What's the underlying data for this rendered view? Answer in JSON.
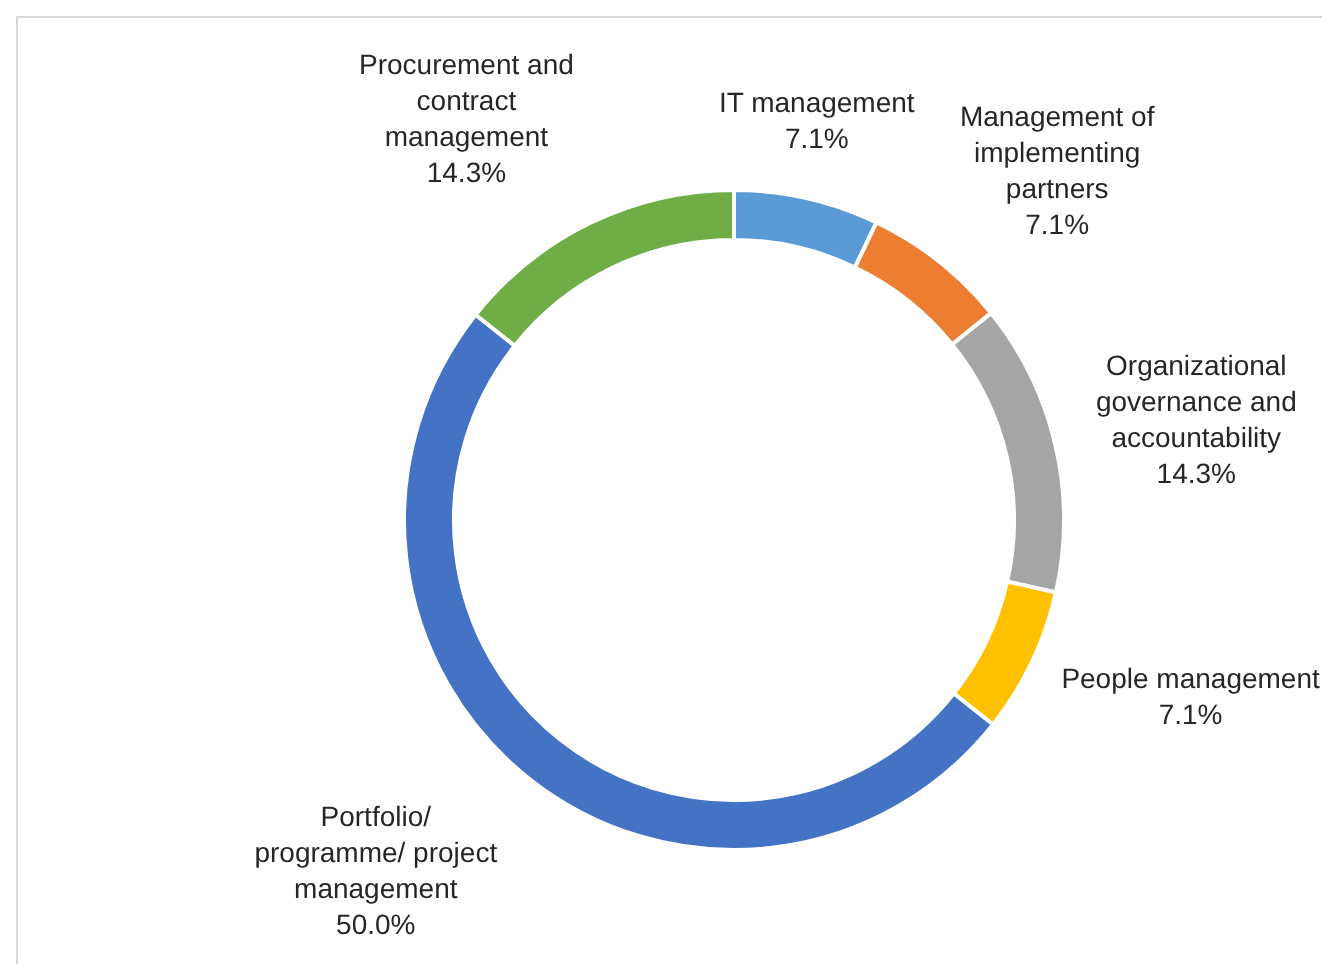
{
  "chart_data": {
    "type": "donut",
    "categories": [
      "IT management",
      "Management of implementing partners",
      "Organizational governance and accountability",
      "People management",
      "Portfolio/ programme/ project management",
      "Procurement and contract management"
    ],
    "values": [
      7.1,
      7.1,
      14.3,
      7.1,
      50.0,
      14.3
    ],
    "colors": [
      "#5b9bd5",
      "#ed7d31",
      "#a5a5a5",
      "#ffc000",
      "#4472c4",
      "#70ad47"
    ],
    "value_labels": [
      "7.1%",
      "7.1%",
      "14.3%",
      "7.1%",
      "50.0%",
      "14.3%"
    ],
    "legend": false
  }
}
